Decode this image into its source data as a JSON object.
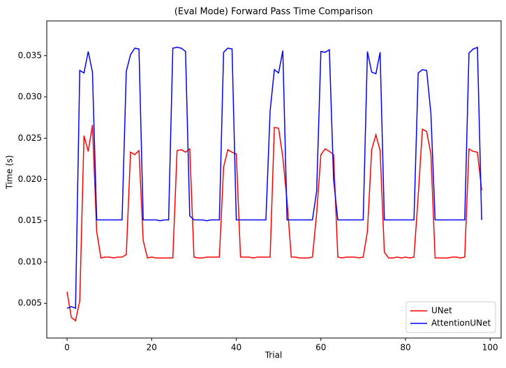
{
  "chart_data": {
    "type": "line",
    "title": "(Eval Mode) Forward Pass Time Comparison",
    "x_label": "Trial",
    "y_label": "Time (s)",
    "x": [
      0,
      1,
      2,
      3,
      4,
      5,
      6,
      7,
      8,
      9,
      10,
      11,
      12,
      13,
      14,
      15,
      16,
      17,
      18,
      19,
      20,
      21,
      22,
      23,
      24,
      25,
      26,
      27,
      28,
      29,
      30,
      31,
      32,
      33,
      34,
      35,
      36,
      37,
      38,
      39,
      40,
      41,
      42,
      43,
      44,
      45,
      46,
      47,
      48,
      49,
      50,
      51,
      52,
      53,
      54,
      55,
      56,
      57,
      58,
      59,
      60,
      61,
      62,
      63,
      64,
      65,
      66,
      67,
      68,
      69,
      70,
      71,
      72,
      73,
      74,
      75,
      76,
      77,
      78,
      79,
      80,
      81,
      82,
      83,
      84,
      85,
      86,
      87,
      88,
      89,
      90,
      91,
      92,
      93,
      94,
      95,
      96,
      97,
      98
    ],
    "series": [
      {
        "name": "UNet",
        "color": "#ff0000",
        "values": [
          0.0064,
          0.0033,
          0.0029,
          0.0053,
          0.0253,
          0.0234,
          0.0266,
          0.0137,
          0.0105,
          0.0106,
          0.0106,
          0.0105,
          0.0106,
          0.0106,
          0.0109,
          0.0233,
          0.023,
          0.0235,
          0.0126,
          0.0105,
          0.0106,
          0.0105,
          0.0105,
          0.0105,
          0.0105,
          0.0105,
          0.0235,
          0.0236,
          0.0233,
          0.0237,
          0.0106,
          0.0105,
          0.0105,
          0.0106,
          0.0106,
          0.0106,
          0.0106,
          0.0215,
          0.0236,
          0.0233,
          0.0231,
          0.0106,
          0.0106,
          0.0106,
          0.0105,
          0.0106,
          0.0106,
          0.0106,
          0.0106,
          0.0263,
          0.0262,
          0.0227,
          0.0174,
          0.0106,
          0.0106,
          0.0105,
          0.0105,
          0.0105,
          0.0106,
          0.0159,
          0.023,
          0.0237,
          0.0234,
          0.023,
          0.0106,
          0.0105,
          0.0106,
          0.0106,
          0.0106,
          0.0105,
          0.0106,
          0.0137,
          0.0236,
          0.0254,
          0.0235,
          0.0112,
          0.0105,
          0.0105,
          0.0106,
          0.0105,
          0.0106,
          0.0105,
          0.0106,
          0.018,
          0.0261,
          0.0258,
          0.0231,
          0.0105,
          0.0105,
          0.0105,
          0.0105,
          0.0106,
          0.0106,
          0.0105,
          0.0106,
          0.0237,
          0.0234,
          0.0233,
          0.0187
        ]
      },
      {
        "name": "AttentionUNet",
        "color": "#0000ff",
        "values": [
          0.0044,
          0.0046,
          0.0044,
          0.0332,
          0.0329,
          0.0355,
          0.033,
          0.0151,
          0.0151,
          0.0151,
          0.0151,
          0.0151,
          0.0151,
          0.0151,
          0.0331,
          0.0351,
          0.0359,
          0.0358,
          0.0151,
          0.0151,
          0.0151,
          0.0151,
          0.015,
          0.0151,
          0.0151,
          0.0359,
          0.036,
          0.0359,
          0.0355,
          0.0156,
          0.0151,
          0.0151,
          0.0151,
          0.015,
          0.0151,
          0.0151,
          0.0151,
          0.0354,
          0.0359,
          0.0358,
          0.0151,
          0.0151,
          0.0151,
          0.0151,
          0.0151,
          0.0151,
          0.0151,
          0.0151,
          0.0283,
          0.0333,
          0.0329,
          0.0356,
          0.0151,
          0.0151,
          0.0151,
          0.0151,
          0.0151,
          0.0151,
          0.0151,
          0.0186,
          0.0355,
          0.0354,
          0.0357,
          0.02,
          0.0151,
          0.0151,
          0.0151,
          0.0151,
          0.0151,
          0.0151,
          0.0151,
          0.0355,
          0.033,
          0.0328,
          0.0354,
          0.0151,
          0.0151,
          0.0151,
          0.0151,
          0.0151,
          0.0151,
          0.0151,
          0.0151,
          0.0329,
          0.0333,
          0.0332,
          0.028,
          0.0151,
          0.0151,
          0.0151,
          0.0151,
          0.0151,
          0.0151,
          0.0151,
          0.0151,
          0.0353,
          0.0358,
          0.036,
          0.0151
        ]
      }
    ],
    "xlim": [
      -4.8,
      102.6
    ],
    "ylim": [
      0.0008,
      0.0392
    ],
    "xticks": [
      0,
      20,
      40,
      60,
      80,
      100
    ],
    "yticks": [
      0.005,
      {
        "value": 0.01,
        "label": "0.010"
      },
      0.015,
      {
        "value": 0.02,
        "label": "0.020"
      },
      0.025,
      {
        "value": 0.03,
        "label": "0.030"
      },
      0.035
    ],
    "legend": "lower right"
  }
}
